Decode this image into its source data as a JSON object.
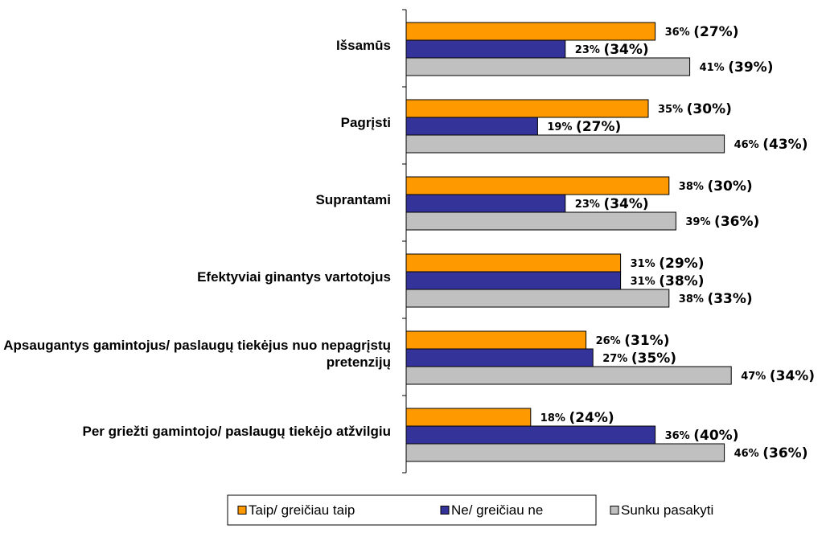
{
  "chart_data": {
    "type": "hbar",
    "categories": [
      "Išsamūs",
      "Pagrįsti",
      "Suprantami",
      "Efektyviai ginantys vartotojus",
      "Apsaugantys gamintojus/ paslaugų tiekėjus nuo nepagrįstų pretenzijų",
      "Per griežti gamintojo/ paslaugų tiekėjo atžvilgiu"
    ],
    "xlim": [
      0,
      60
    ],
    "legend": "bottom",
    "series": [
      {
        "name": "Taip/ greičiau taip",
        "color": "#FF9900",
        "values": [
          36,
          35,
          38,
          31,
          26,
          18
        ],
        "value_labels": [
          "36% (27%)",
          "35% (30%)",
          "38% (30%)",
          "31% (29%)",
          "26% (31%)",
          "18% (24%)"
        ]
      },
      {
        "name": "Ne/ greičiau ne",
        "color": "#333399",
        "values": [
          23,
          19,
          23,
          31,
          27,
          36
        ],
        "value_labels": [
          "23% (34%)",
          "19% (27%)",
          "23% (34%)",
          "31% (38%)",
          "27% (35%)",
          "36% (40%)"
        ]
      },
      {
        "name": "Sunku pasakyti",
        "color": "#C0C0C0",
        "values": [
          41,
          46,
          39,
          38,
          47,
          46
        ],
        "value_labels": [
          "41% (39%)",
          "46% (43%)",
          "39% (36%)",
          "38% (33%)",
          "47% (34%)",
          "46% (36%)"
        ]
      }
    ]
  }
}
